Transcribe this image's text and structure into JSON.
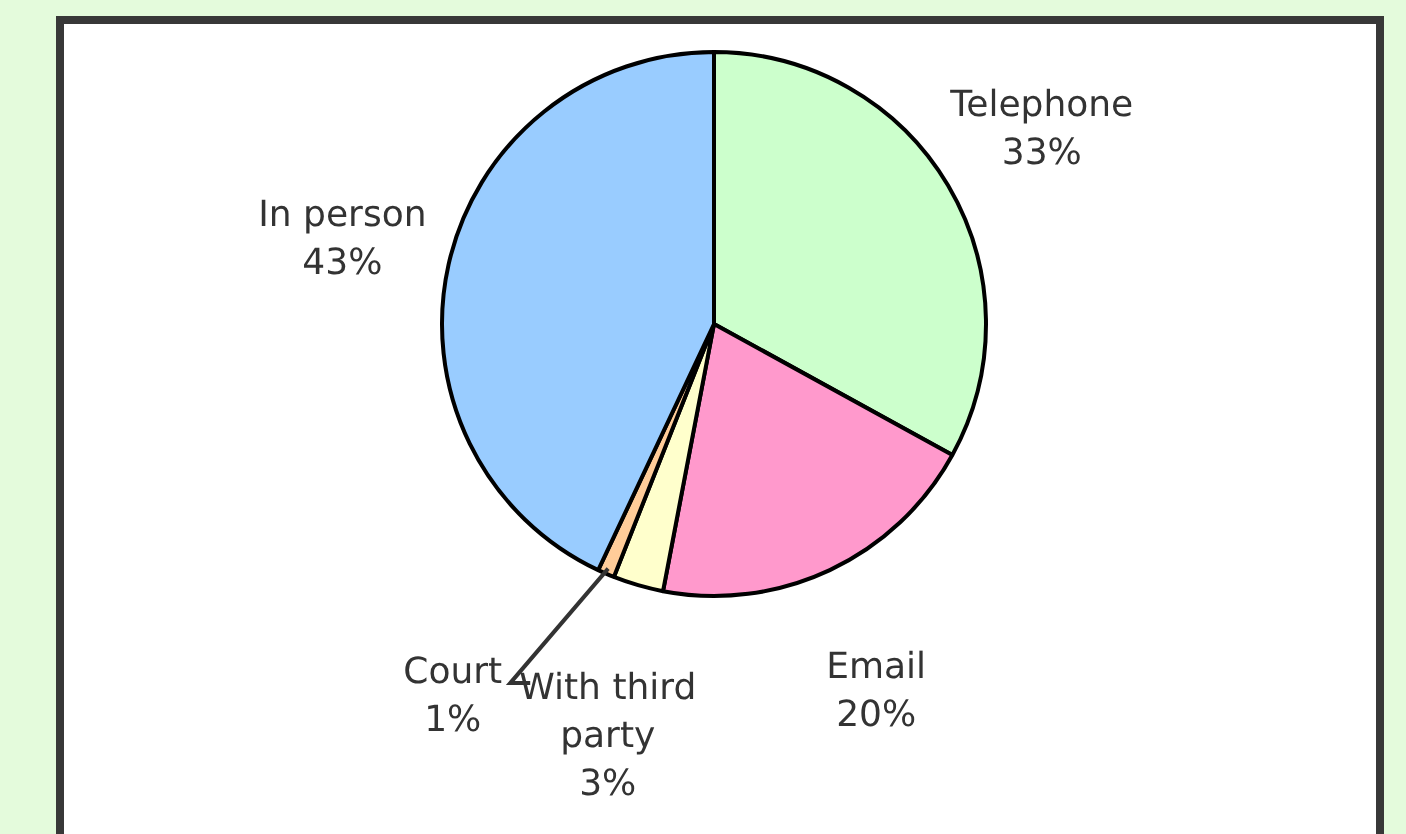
{
  "chart_data": {
    "type": "pie",
    "categories": [
      "Telephone",
      "Email",
      "With third party",
      "Court",
      "In person"
    ],
    "values": [
      33,
      20,
      3,
      1,
      43
    ],
    "value_labels": [
      "33%",
      "20%",
      "3%",
      "1%",
      "43%"
    ],
    "colors": [
      "#ccffcc",
      "#ff99cc",
      "#ffffcc",
      "#ffcc99",
      "#99ccff"
    ],
    "legend": false
  }
}
